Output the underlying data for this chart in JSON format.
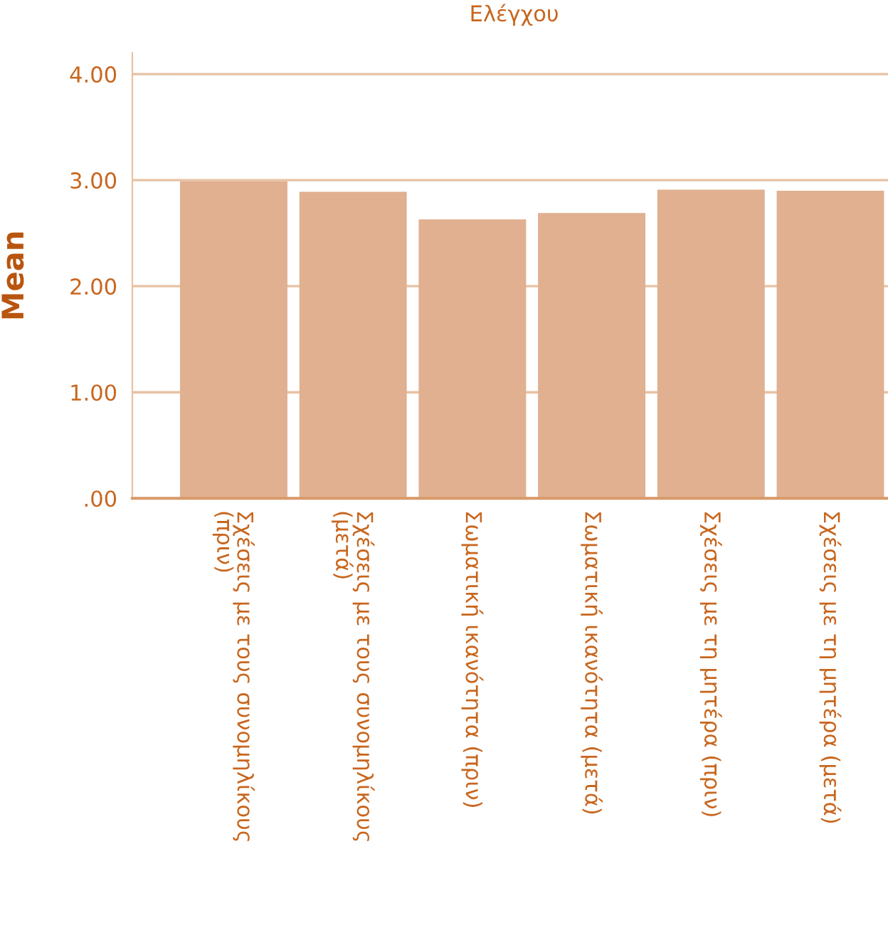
{
  "chart_data": {
    "type": "bar",
    "title": "Ελέγχου",
    "ylabel": "Mean",
    "categories": [
      "Σχέσεις με τους συνομηλίκους (πριν)",
      "Σχέσεις με τους συνομηλίκους (μετά)",
      "Σωματική ικανότητα (πριν)",
      "Σωματική ικανότητα (μετά)",
      "Σχέσεις με τη μητέρα (πριν)",
      "Σχέσεις με τη μητέρα (μετά)"
    ],
    "values": [
      2.99,
      2.89,
      2.63,
      2.69,
      2.91,
      2.9
    ],
    "color": "#e0b090",
    "ylim": [
      0,
      4.2
    ],
    "yticks": [
      {
        "value": 0,
        "label": ".00"
      },
      {
        "value": 1,
        "label": "1.00"
      },
      {
        "value": 2,
        "label": "2.00"
      },
      {
        "value": 3,
        "label": "3.00"
      },
      {
        "value": 4,
        "label": "4.00"
      }
    ],
    "grid": "y"
  }
}
